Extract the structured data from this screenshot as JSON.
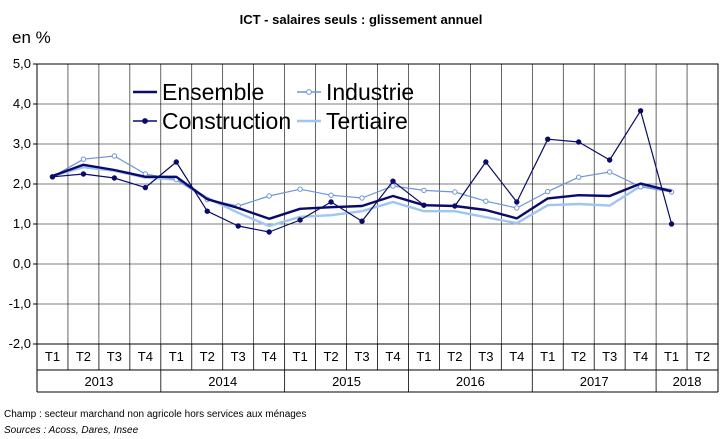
{
  "chart_data": {
    "type": "line",
    "title": "ICT - salaires seuls :  glissement annuel",
    "unit_label": "en %",
    "ylim": [
      -2.0,
      5.0
    ],
    "y_ticks": [
      "5,0",
      "4,0",
      "3,0",
      "2,0",
      "1,0",
      "0,0",
      "-1,0",
      "-2,0"
    ],
    "grid": true,
    "legend_position": "top-left",
    "quarters": [
      "T1",
      "T2",
      "T3",
      "T4",
      "T1",
      "T2",
      "T3",
      "T4",
      "T1",
      "T2",
      "T3",
      "T4",
      "T1",
      "T2",
      "T3",
      "T4",
      "T1",
      "T2",
      "T3",
      "T4",
      "T1",
      "T2"
    ],
    "years": [
      {
        "label": "2013",
        "span": 4
      },
      {
        "label": "2014",
        "span": 4
      },
      {
        "label": "2015",
        "span": 4
      },
      {
        "label": "2016",
        "span": 4
      },
      {
        "label": "2017",
        "span": 4
      },
      {
        "label": "2018",
        "span": 2
      }
    ],
    "series": [
      {
        "name": "Ensemble",
        "color": "#0a0a6e",
        "marker": false,
        "values": [
          2.2,
          2.48,
          2.35,
          2.18,
          2.18,
          1.62,
          1.4,
          1.13,
          1.38,
          1.42,
          1.45,
          1.7,
          1.47,
          1.45,
          1.35,
          1.14,
          1.64,
          1.72,
          1.7,
          2.01,
          1.82,
          null
        ]
      },
      {
        "name": "Industrie",
        "color": "#6d96d8",
        "marker": true,
        "values": [
          2.18,
          2.62,
          2.7,
          2.25,
          2.11,
          1.61,
          1.45,
          1.7,
          1.87,
          1.72,
          1.65,
          1.95,
          1.84,
          1.8,
          1.57,
          1.4,
          1.81,
          2.17,
          2.3,
          1.93,
          1.8,
          null
        ]
      },
      {
        "name": "Construction",
        "color": "#0a0a6e",
        "marker": true,
        "values": [
          2.18,
          2.25,
          2.15,
          1.91,
          2.55,
          1.32,
          0.95,
          0.8,
          1.1,
          1.55,
          1.07,
          2.07,
          1.47,
          1.45,
          2.55,
          1.55,
          3.12,
          3.05,
          2.6,
          3.83,
          1.0,
          null
        ]
      },
      {
        "name": "Tertiaire",
        "color": "#9ec6ee",
        "marker": false,
        "values": [
          2.2,
          2.42,
          2.33,
          2.16,
          2.11,
          1.65,
          1.28,
          0.95,
          1.18,
          1.22,
          1.32,
          1.55,
          1.32,
          1.32,
          1.17,
          1.02,
          1.47,
          1.5,
          1.46,
          1.95,
          1.85,
          null
        ]
      }
    ]
  },
  "footer": {
    "champ": "Champ : secteur marchand non agricole hors services aux ménages",
    "sources": "Sources : Acoss, Dares, Insee"
  }
}
